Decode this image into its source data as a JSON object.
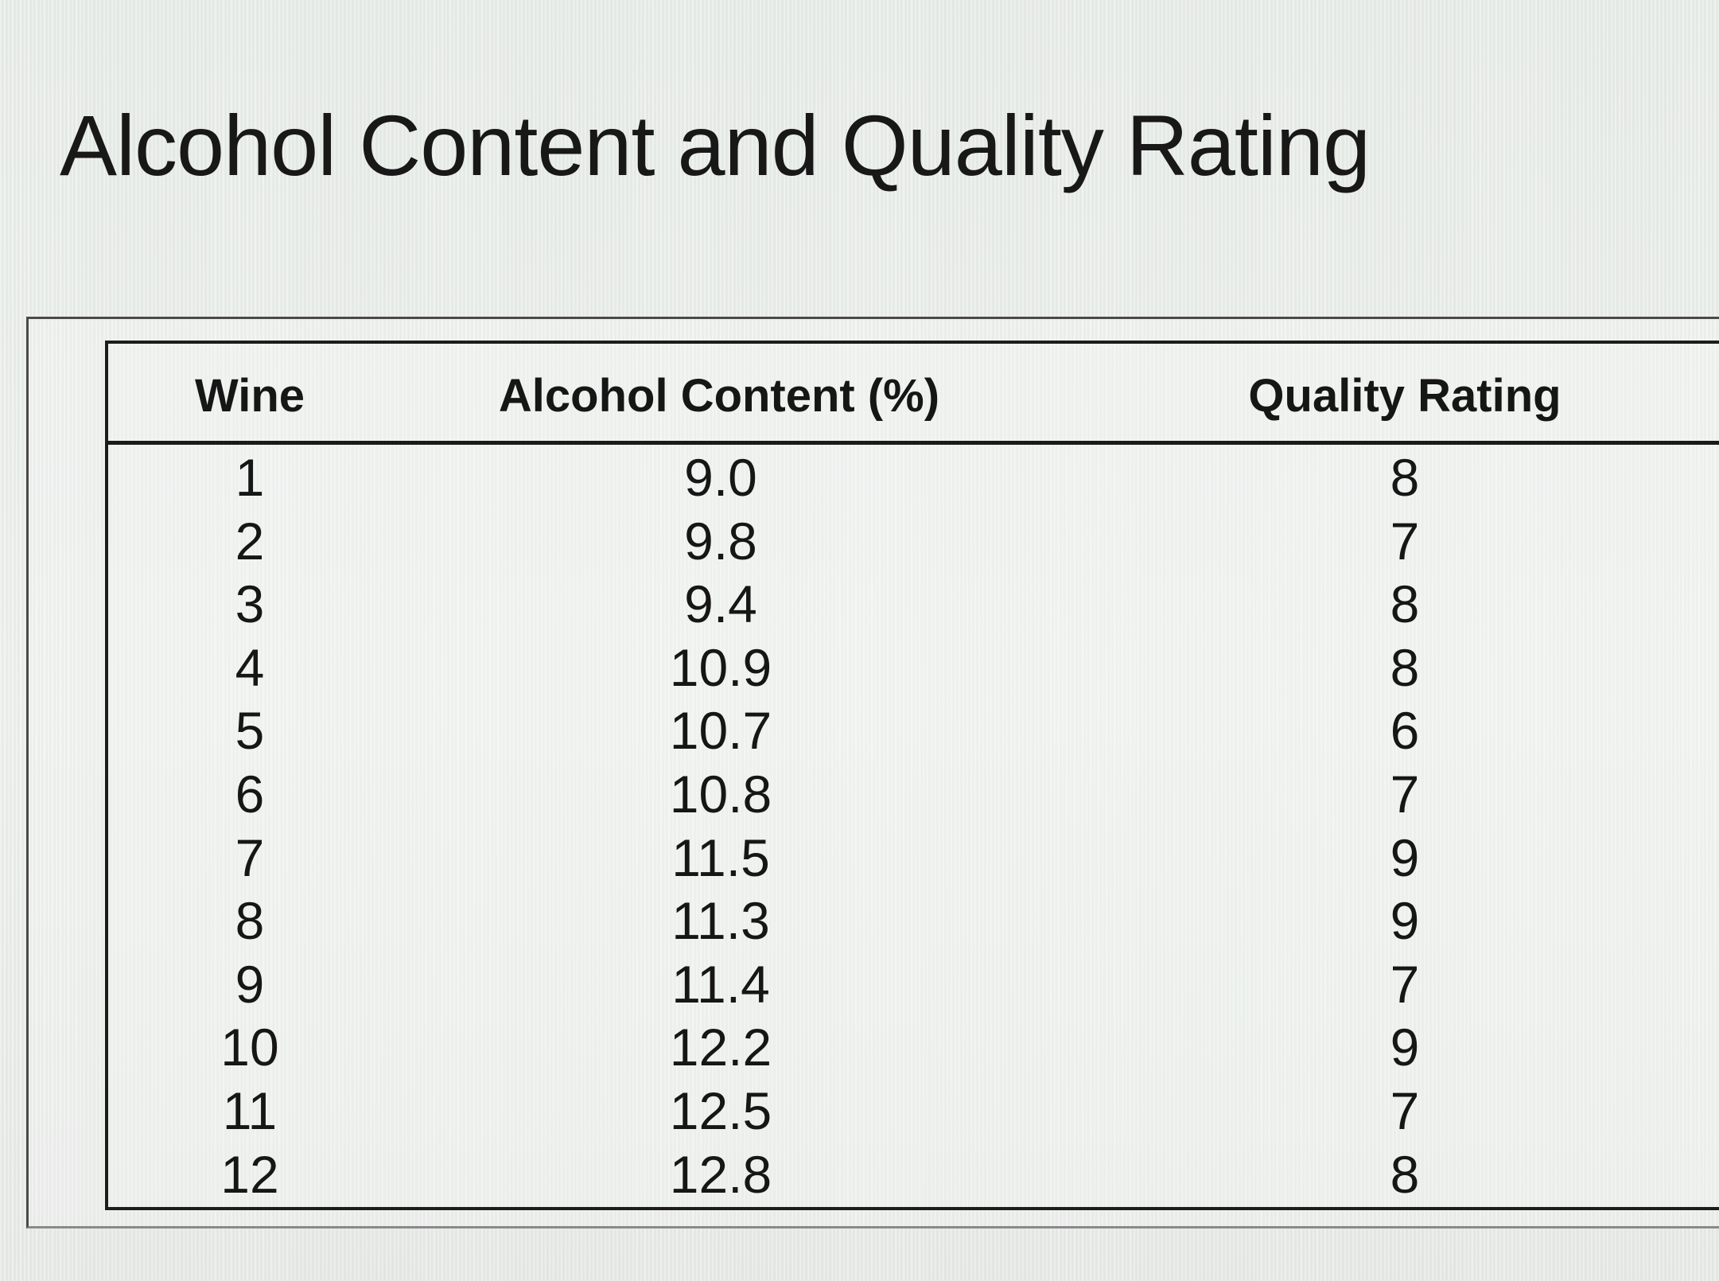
{
  "title": "Alcohol Content and Quality Rating",
  "table": {
    "headers": [
      "Wine",
      "Alcohol Content (%)",
      "Quality Rating"
    ],
    "rows": [
      [
        "1",
        "9.0",
        "8"
      ],
      [
        "2",
        "9.8",
        "7"
      ],
      [
        "3",
        "9.4",
        "8"
      ],
      [
        "4",
        "10.9",
        "8"
      ],
      [
        "5",
        "10.7",
        "6"
      ],
      [
        "6",
        "10.8",
        "7"
      ],
      [
        "7",
        "11.5",
        "9"
      ],
      [
        "8",
        "11.3",
        "9"
      ],
      [
        "9",
        "11.4",
        "7"
      ],
      [
        "10",
        "12.2",
        "9"
      ],
      [
        "11",
        "12.5",
        "7"
      ],
      [
        "12",
        "12.8",
        "8"
      ]
    ]
  }
}
